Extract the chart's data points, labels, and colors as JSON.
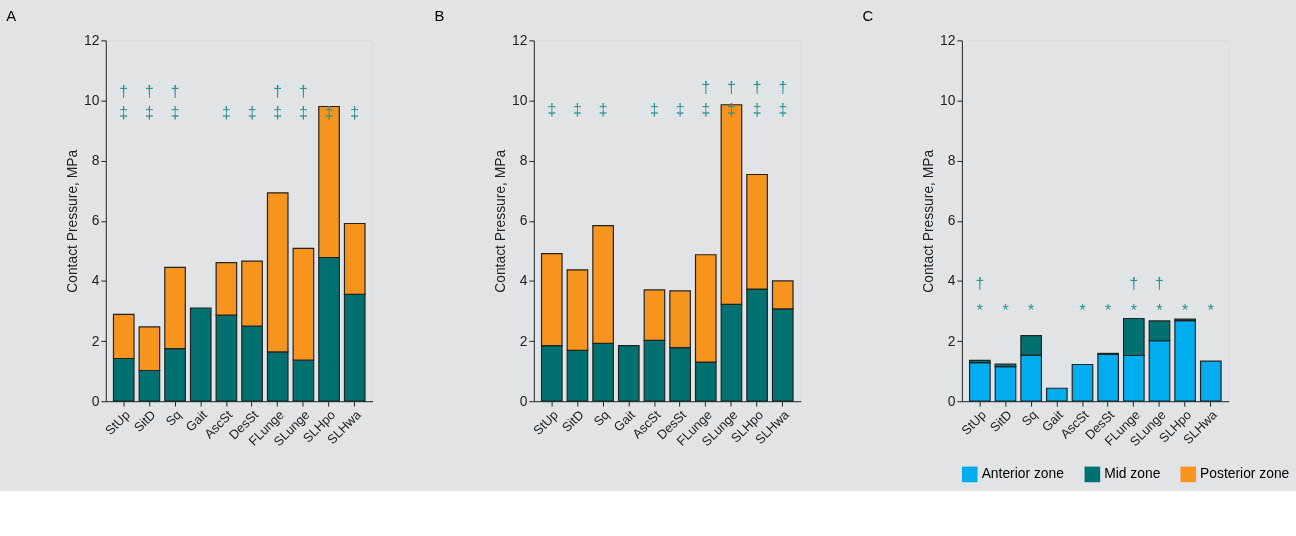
{
  "chart_data": [
    {
      "type": "bar",
      "title": "A",
      "stacked": true,
      "ylabel": "Contact Pressure, MPa",
      "ylim": [
        0,
        12
      ],
      "yticks": [
        0,
        2,
        4,
        6,
        8,
        10,
        12
      ],
      "grid": false,
      "categories": [
        "StUp",
        "SitD",
        "Sq",
        "Gait",
        "AscSt",
        "DesSt",
        "FLunge",
        "SLunge",
        "SLHpo",
        "SLHwa"
      ],
      "series": [
        {
          "color": "#007070",
          "values": [
            1.42,
            1.02,
            1.75,
            3.1,
            2.86,
            2.5,
            1.64,
            1.37,
            4.78,
            3.55
          ]
        },
        {
          "color": "#f7941d",
          "values": [
            1.47,
            1.45,
            2.7,
            null,
            1.75,
            2.16,
            5.29,
            3.71,
            5.02,
            2.36
          ]
        }
      ],
      "annotations": [
        "†",
        "†",
        "†",
        "†",
        "†",
        "‡",
        "‡",
        "‡",
        "‡",
        "‡",
        "‡",
        "‡",
        "‡",
        "‡"
      ]
    },
    {
      "type": "bar",
      "title": "B",
      "stacked": true,
      "ylabel": "Contact Pressure, MPa",
      "ylim": [
        0,
        12
      ],
      "yticks": [
        0,
        2,
        4,
        6,
        8,
        10,
        12
      ],
      "grid": false,
      "categories": [
        "StUp",
        "SitD",
        "Sq",
        "Gait",
        "AscSt",
        "DesSt",
        "FLunge",
        "SLunge",
        "SLHpo",
        "SLHwa"
      ],
      "series": [
        {
          "color": "#007070",
          "values": [
            1.85,
            1.69,
            1.92,
            1.85,
            2.02,
            1.78,
            1.3,
            3.22,
            3.73,
            3.07
          ]
        },
        {
          "color": "#f7941d",
          "values": [
            3.06,
            2.68,
            3.92,
            null,
            1.68,
            1.89,
            3.57,
            6.64,
            3.81,
            0.93
          ]
        }
      ],
      "annotations": [
        "†",
        "†",
        "†",
        "†",
        "‡",
        "‡",
        "‡",
        "‡",
        "‡",
        "‡",
        "‡",
        "‡",
        "‡"
      ]
    },
    {
      "type": "bar",
      "title": "C",
      "stacked": true,
      "ylabel": "Contact Pressure, MPa",
      "ylim": [
        0,
        12
      ],
      "yticks": [
        0,
        2,
        4,
        6,
        8,
        10,
        12
      ],
      "grid": false,
      "legend": "bottom",
      "categories": [
        "StUp",
        "SitD",
        "Sq",
        "Gait",
        "AscSt",
        "DesSt",
        "FLunge",
        "SLunge",
        "SLHpo",
        "SLHwa"
      ],
      "series": [
        {
          "name": "Anterior zone",
          "color": "#00aeef",
          "values": [
            1.28,
            1.15,
            1.53,
            0.43,
            1.22,
            1.56,
            1.52,
            2.01,
            2.68,
            1.33
          ]
        },
        {
          "name": "Mid zone",
          "color": "#007070",
          "values": [
            0.08,
            0.08,
            0.65,
            null,
            null,
            0.03,
            1.23,
            0.66,
            0.05,
            null
          ]
        },
        {
          "name": "Posterior zone",
          "color": "#f7941d",
          "values": [
            null,
            null,
            null,
            null,
            null,
            null,
            null,
            null,
            null,
            null
          ]
        }
      ],
      "annotations": [
        "†",
        "†",
        "†",
        "*",
        "*",
        "*",
        "*",
        "*",
        "*",
        "*",
        "*",
        "*"
      ]
    }
  ]
}
